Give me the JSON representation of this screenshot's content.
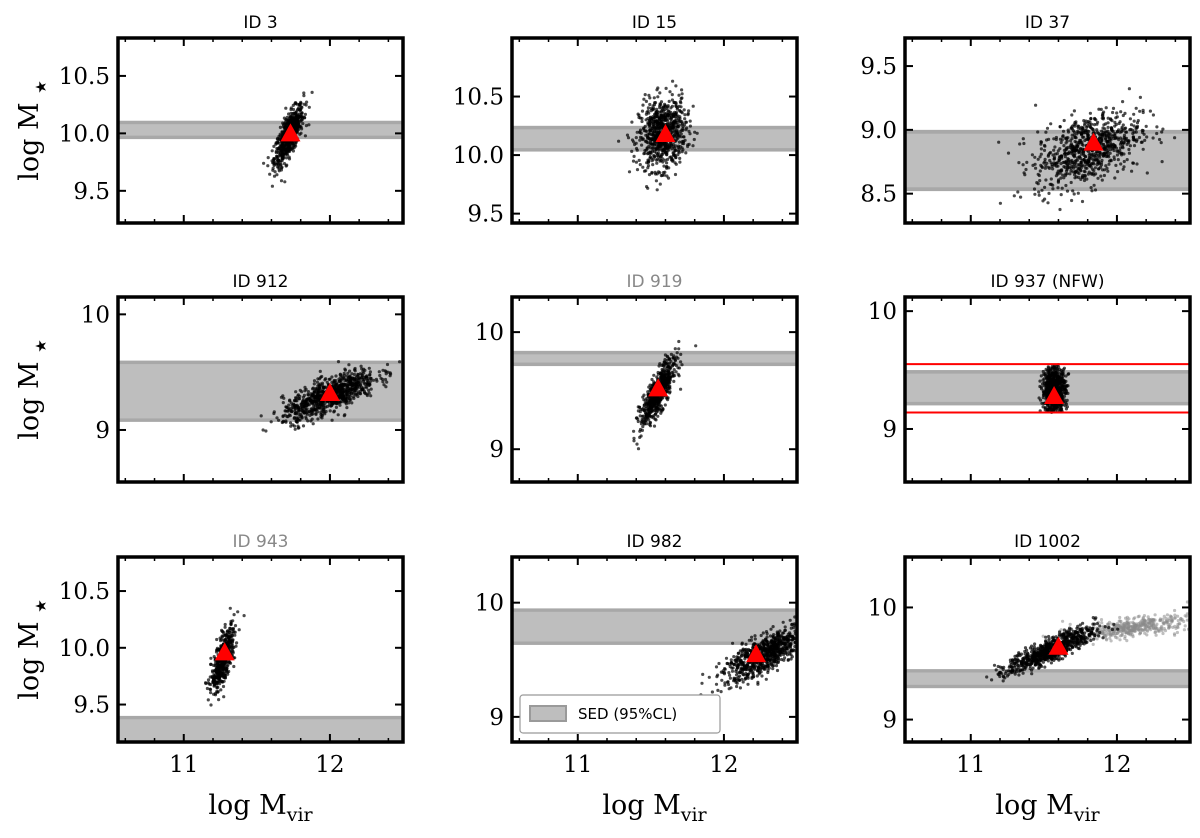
{
  "figure": {
    "ylabel_main": "log M",
    "ylabel_sub": "★",
    "xlabel_main": "log M",
    "xlabel_sub": "vir",
    "xticks": [
      "11",
      "12"
    ],
    "xlim": [
      10.55,
      12.5
    ],
    "legend": {
      "label": "SED (95%CL)",
      "location": "lower-left",
      "panel": 8
    },
    "colors": {
      "points": "#000000",
      "faded_points": "#8a8a8a",
      "band": "#bebebe",
      "marker": "#ff0000",
      "faded_title": "#888888"
    }
  },
  "chart_data": [
    {
      "type": "scatter",
      "title": "ID 3",
      "title_color": "#000000",
      "ylim": [
        9.22,
        10.83
      ],
      "yticks": [
        "9.5",
        "10.0",
        "10.5"
      ],
      "band": [
        9.95,
        10.11
      ],
      "band_inner": [
        9.98,
        10.08
      ],
      "marker": [
        11.73,
        10.0
      ],
      "cloud": {
        "center": [
          11.72,
          9.98
        ],
        "sx": 0.05,
        "sy": 0.13,
        "rho": 0.75,
        "n": 650
      }
    },
    {
      "type": "scatter",
      "title": "ID 15",
      "title_color": "#000000",
      "ylim": [
        9.42,
        11.0
      ],
      "yticks": [
        "9.5",
        "10.0",
        "10.5"
      ],
      "band": [
        10.03,
        10.25
      ],
      "band_inner": [
        10.06,
        10.22
      ],
      "marker": [
        11.6,
        10.18
      ],
      "cloud": {
        "center": [
          11.58,
          10.18
        ],
        "sx": 0.08,
        "sy": 0.15,
        "rho": 0.15,
        "n": 750
      }
    },
    {
      "type": "scatter",
      "title": "ID 37",
      "title_color": "#000000",
      "ylim": [
        8.27,
        9.72
      ],
      "yticks": [
        "8.5",
        "9.0",
        "9.5"
      ],
      "band": [
        8.52,
        9.0
      ],
      "band_inner": [
        8.55,
        8.97
      ],
      "marker": [
        11.84,
        8.9
      ],
      "cloud": {
        "center": [
          11.8,
          8.85
        ],
        "sx": 0.18,
        "sy": 0.15,
        "rho": 0.45,
        "n": 800
      }
    },
    {
      "type": "scatter",
      "title": "ID 912",
      "title_color": "#000000",
      "ylim": [
        8.55,
        10.15
      ],
      "yticks": [
        "9",
        "10"
      ],
      "band": [
        9.07,
        9.6
      ],
      "band_inner": [
        9.1,
        9.57
      ],
      "marker": [
        12.0,
        9.32
      ],
      "cloud": {
        "center": [
          12.0,
          9.3
        ],
        "sx": 0.16,
        "sy": 0.11,
        "rho": 0.75,
        "n": 850
      }
    },
    {
      "type": "scatter",
      "title": "ID 919",
      "title_color": "#888888",
      "ylim": [
        8.72,
        10.3
      ],
      "yticks": [
        "9",
        "10"
      ],
      "band": [
        9.71,
        9.84
      ],
      "band_inner": [
        9.74,
        9.81
      ],
      "marker": [
        11.55,
        9.52
      ],
      "cloud": {
        "center": [
          11.55,
          9.48
        ],
        "sx": 0.06,
        "sy": 0.14,
        "rho": 0.8,
        "n": 600
      }
    },
    {
      "type": "scatter",
      "title": "ID 937 (NFW)",
      "title_color": "#000000",
      "ylim": [
        8.55,
        10.12
      ],
      "yticks": [
        "9",
        "10"
      ],
      "band": [
        9.2,
        9.5
      ],
      "band_inner": [
        9.23,
        9.47
      ],
      "marker": [
        11.57,
        9.28
      ],
      "redlines": [
        9.14,
        9.55
      ],
      "cloud": {
        "center": [
          11.57,
          9.33
        ],
        "sx": 0.04,
        "sy": 0.1,
        "rho": 0.0,
        "n": 700,
        "ybounds": [
          9.14,
          9.55
        ]
      }
    },
    {
      "type": "scatter",
      "title": "ID 943",
      "title_color": "#888888",
      "ylim": [
        9.17,
        10.8
      ],
      "yticks": [
        "9.5",
        "10.0",
        "10.5"
      ],
      "band": [
        9.05,
        9.4
      ],
      "band_inner": [
        9.08,
        9.37
      ],
      "marker": [
        11.28,
        9.96
      ],
      "cloud": {
        "center": [
          11.27,
          9.9
        ],
        "sx": 0.04,
        "sy": 0.14,
        "rho": 0.7,
        "n": 500
      }
    },
    {
      "type": "scatter",
      "title": "ID 982",
      "title_color": "#000000",
      "ylim": [
        8.78,
        10.4
      ],
      "yticks": [
        "9",
        "10"
      ],
      "band": [
        9.63,
        9.95
      ],
      "band_inner": [
        9.66,
        9.92
      ],
      "marker": [
        12.22,
        9.55
      ],
      "cloud": {
        "center": [
          12.28,
          9.55
        ],
        "sx": 0.14,
        "sy": 0.12,
        "rho": 0.75,
        "n": 800
      }
    },
    {
      "type": "scatter",
      "title": "ID 1002",
      "title_color": "#000000",
      "ylim": [
        8.8,
        10.45
      ],
      "yticks": [
        "9",
        "10"
      ],
      "band": [
        9.28,
        9.45
      ],
      "band_inner": [
        9.31,
        9.42
      ],
      "marker": [
        11.6,
        9.65
      ],
      "cloud": {
        "center": [
          11.55,
          9.62
        ],
        "sx": 0.15,
        "sy": 0.1,
        "rho": 0.85,
        "n": 750
      },
      "faded_cloud": {
        "center": [
          12.1,
          9.82
        ],
        "sx": 0.2,
        "sy": 0.05,
        "rho": 0.6,
        "n": 450
      }
    }
  ]
}
